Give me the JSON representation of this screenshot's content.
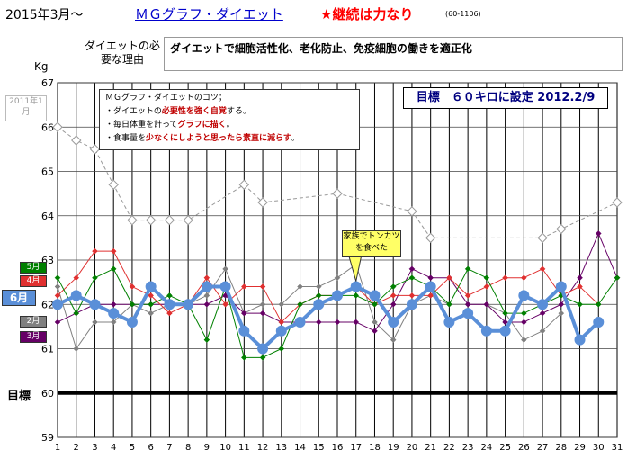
{
  "header": {
    "date": "2015年3月〜",
    "app_title": "ＭＧグラフ・ダイエット",
    "motto": "★継続は力なり",
    "code": "(60-1106)"
  },
  "reason": {
    "label": "ダイエットの必要な理由",
    "text": "ダイエットで細胞活性化、老化防止、免疫細胞の働きを適正化"
  },
  "tips": {
    "title": "ＭＧグラフ・ダイエットのコツ；",
    "line1_a": "・ダイエットの",
    "line1_em": "必要性を強く自覚",
    "line1_b": "する。",
    "line2_a": "・毎日体重を計って",
    "line2_em": "グラフに描く",
    "line2_b": "。",
    "line3_a": "・食事量を",
    "line3_em": "少なくにしようと思ったら素直に減らす",
    "line3_b": "。"
  },
  "goal_box": "目標　６０キロに設定 2012.2/9",
  "callout": "家族でトンカツを食べた",
  "year_badge": "2011年1月",
  "month_tags": {
    "may": "5月",
    "apr": "4月",
    "jun": "6月",
    "feb": "2月",
    "mar": "3月"
  },
  "goal_axis_label": "目標",
  "colors": {
    "grid": "#000000",
    "goal_line": "#000000",
    "jun": "#5a8fd8",
    "may": "#008000",
    "apr": "#e03030",
    "mar": "#660066",
    "feb": "#808080",
    "jan2011": "#999999"
  },
  "chart_data": {
    "type": "line",
    "ylabel": "Kg",
    "ylim": [
      59,
      67
    ],
    "yticks": [
      59,
      60,
      61,
      62,
      63,
      64,
      65,
      66,
      67
    ],
    "x": [
      1,
      2,
      3,
      4,
      5,
      6,
      7,
      8,
      9,
      10,
      11,
      12,
      13,
      14,
      15,
      16,
      17,
      18,
      19,
      20,
      21,
      22,
      23,
      24,
      25,
      26,
      27,
      28,
      29,
      30,
      31
    ],
    "goal": 60,
    "grid": true,
    "series": [
      {
        "name": "2011年1月",
        "key": "jan2011",
        "dashed": true,
        "hollow": true,
        "values": [
          66.0,
          65.7,
          65.5,
          64.7,
          63.9,
          63.9,
          63.9,
          63.9,
          null,
          null,
          64.7,
          64.3,
          null,
          null,
          null,
          64.5,
          null,
          null,
          null,
          64.1,
          63.5,
          null,
          null,
          null,
          null,
          null,
          63.5,
          63.7,
          null,
          null,
          64.3
        ]
      },
      {
        "name": "2月",
        "key": "feb",
        "values": [
          62.4,
          61.0,
          61.6,
          61.6,
          62.0,
          61.8,
          62.0,
          62.0,
          62.2,
          62.8,
          61.8,
          62.0,
          62.0,
          62.4,
          62.4,
          62.6,
          62.9,
          61.6,
          61.2,
          62.0,
          62.2,
          62.0,
          62.0,
          62.0,
          61.8,
          61.2,
          61.4,
          61.8,
          null,
          null,
          null
        ]
      },
      {
        "name": "3月",
        "key": "mar",
        "values": [
          61.6,
          61.8,
          62.0,
          62.0,
          62.0,
          62.0,
          62.0,
          62.0,
          62.0,
          62.2,
          61.8,
          61.8,
          61.6,
          61.6,
          61.6,
          61.6,
          61.6,
          61.4,
          62.0,
          62.8,
          62.6,
          62.6,
          62.0,
          62.0,
          61.6,
          61.6,
          61.8,
          62.0,
          62.6,
          63.6,
          62.6
        ]
      },
      {
        "name": "4月",
        "key": "apr",
        "values": [
          62.2,
          62.6,
          63.2,
          63.2,
          62.4,
          62.2,
          61.8,
          62.0,
          62.6,
          62.0,
          62.4,
          62.4,
          61.6,
          62.0,
          62.2,
          62.2,
          62.4,
          62.0,
          62.2,
          62.2,
          62.2,
          62.6,
          62.2,
          62.4,
          62.6,
          62.6,
          62.8,
          62.2,
          62.4,
          62.0,
          null
        ]
      },
      {
        "name": "5月",
        "key": "may",
        "values": [
          62.6,
          61.8,
          62.6,
          62.8,
          62.0,
          62.0,
          62.2,
          62.0,
          61.2,
          62.4,
          60.8,
          60.8,
          61.0,
          62.0,
          62.2,
          62.2,
          62.2,
          62.0,
          62.4,
          62.6,
          62.4,
          62.0,
          62.8,
          62.6,
          61.8,
          61.8,
          62.0,
          62.2,
          62.0,
          62.0,
          62.6
        ]
      },
      {
        "name": "6月",
        "key": "jun",
        "bold": true,
        "values": [
          62.0,
          62.2,
          62.0,
          61.8,
          61.6,
          62.4,
          62.0,
          62.0,
          62.4,
          62.4,
          61.4,
          61.0,
          61.4,
          61.6,
          62.0,
          62.2,
          62.4,
          62.2,
          61.6,
          62.0,
          62.4,
          61.6,
          61.8,
          61.4,
          61.4,
          62.2,
          62.0,
          62.4,
          61.2,
          61.6,
          null
        ]
      }
    ]
  }
}
